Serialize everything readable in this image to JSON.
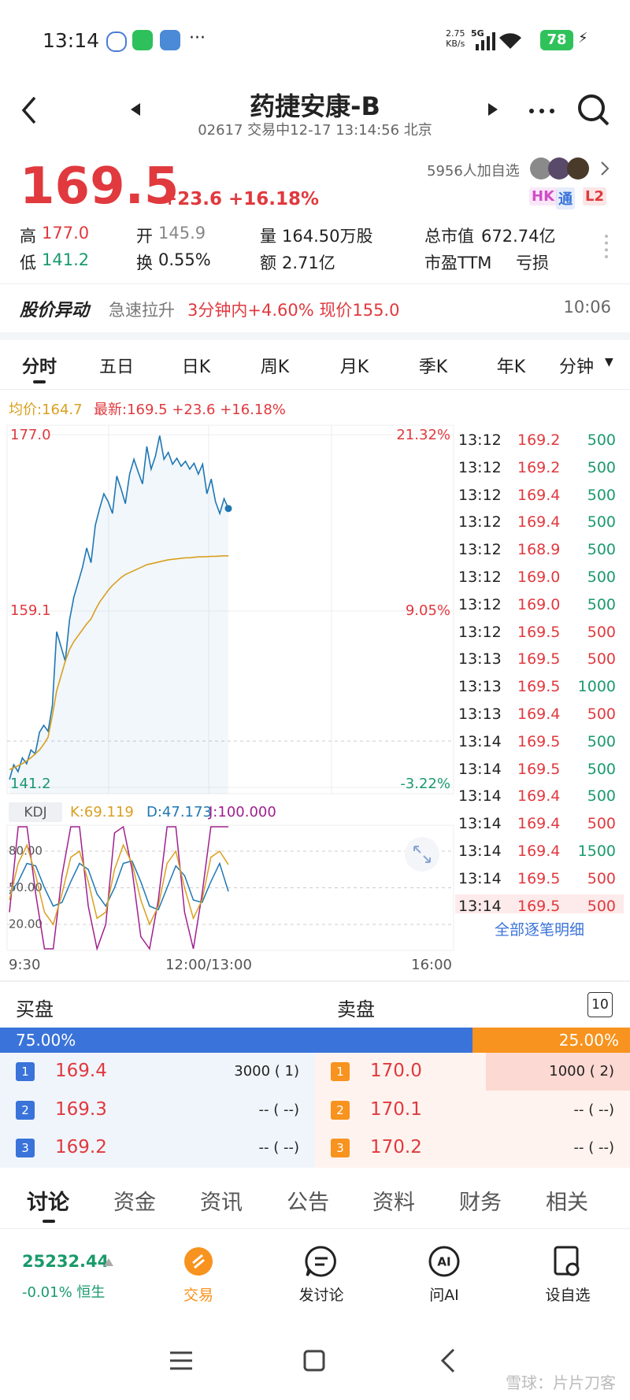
{
  "status": {
    "time": "13:14",
    "speed": "2.75",
    "speed_unit": "KB/s",
    "network": "5G",
    "battery": "78"
  },
  "header": {
    "title": "药捷安康-B",
    "subtitle": "02617 交易中12-17 13:14:56 北京"
  },
  "quote": {
    "price": "169.5",
    "change": "+23.6 +16.18%",
    "followers": "5956人加自选",
    "badges": [
      {
        "text": "HK",
        "color": "#d04cc8"
      },
      {
        "text": "通",
        "color": "#3a73d9"
      },
      {
        "text": "L2",
        "color": "#e0393e"
      }
    ]
  },
  "stats": [
    {
      "label": "高",
      "value": "177.0",
      "color": "#e0393e"
    },
    {
      "label": "开",
      "value": "145.9",
      "color": "#888888"
    },
    {
      "label": "量",
      "value": "164.50万股",
      "color": "#222222"
    },
    {
      "label": "总市值",
      "value": "672.74亿",
      "color": "#222222"
    },
    {
      "label": "低",
      "value": "141.2",
      "color": "#1a9a6c"
    },
    {
      "label": "换",
      "value": "0.55%",
      "color": "#222222"
    },
    {
      "label": "额",
      "value": "2.71亿",
      "color": "#222222"
    },
    {
      "label": "市盈TTM",
      "value": "亏损",
      "color": "#222222"
    }
  ],
  "alert": {
    "label": "股价异动",
    "text": "急速拉升",
    "detail": "3分钟内+4.60% 现价155.0",
    "time": "10:06"
  },
  "tabs": [
    "分时",
    "五日",
    "日K",
    "周K",
    "月K",
    "季K",
    "年K",
    "分钟"
  ],
  "intraday": {
    "avg_label": "均价:164.7",
    "latest_label": "最新:169.5 +23.6 +16.18%",
    "ylim": [
      141.2,
      177.0
    ],
    "yticks": [
      {
        "value": 177.0,
        "label": "177.0"
      },
      159.1,
      141.2
    ],
    "pct_labels": [
      "21.32%",
      "9.05%",
      "-3.22%"
    ],
    "base_line": 145.9,
    "price_color": "#1f77b4",
    "avg_color": "#d9a020",
    "price": [
      142.0,
      143.5,
      142.8,
      144.2,
      143.6,
      145.0,
      144.6,
      146.8,
      147.5,
      146.9,
      149.5,
      157.0,
      155.5,
      154.0,
      158.2,
      160.5,
      162.0,
      163.5,
      165.5,
      164.0,
      167.8,
      169.5,
      171.0,
      170.2,
      169.0,
      172.8,
      171.5,
      170.0,
      173.0,
      174.5,
      173.2,
      172.0,
      175.8,
      173.5,
      174.8,
      176.9,
      174.5,
      175.2,
      174.0,
      174.6,
      173.8,
      174.3,
      173.5,
      174.1,
      173.0,
      174.0,
      171.0,
      172.5,
      170.2,
      169.0,
      170.5,
      169.5
    ],
    "avg": [
      143.0,
      143.2,
      143.4,
      143.6,
      143.9,
      144.2,
      144.6,
      145.0,
      145.6,
      146.3,
      148.5,
      151.0,
      152.5,
      154.0,
      155.2,
      156.0,
      156.6,
      157.2,
      157.8,
      158.3,
      159.2,
      160.0,
      160.6,
      161.2,
      161.7,
      162.1,
      162.5,
      162.8,
      163.0,
      163.2,
      163.4,
      163.6,
      163.8,
      163.9,
      164.0,
      164.1,
      164.2,
      164.3,
      164.35,
      164.4,
      164.45,
      164.5,
      164.5,
      164.55,
      164.6,
      164.6,
      164.62,
      164.65,
      164.65,
      164.68,
      164.7,
      164.7
    ],
    "time_labels": [
      "9:30",
      "12:00/13:00",
      "16:00"
    ]
  },
  "kdj": {
    "label": "KDJ",
    "k_label": "K:69.119",
    "d_label": "D:47.173",
    "j_label": "J:100.000",
    "ylim": [
      0,
      100
    ],
    "yticks": [
      {
        "value": 80,
        "label": "80.00"
      },
      {
        "value": 50,
        "label": "50.00"
      },
      {
        "value": 20,
        "label": "20.00"
      }
    ],
    "k_color": "#d9a020",
    "d_color": "#1f77b4",
    "j_color": "#a0208f",
    "k": [
      40,
      70,
      85,
      60,
      30,
      20,
      45,
      75,
      80,
      55,
      25,
      30,
      65,
      85,
      70,
      40,
      20,
      35,
      70,
      80,
      50,
      25,
      40,
      75,
      80,
      69
    ],
    "d": [
      45,
      55,
      70,
      68,
      50,
      35,
      38,
      55,
      70,
      65,
      45,
      35,
      50,
      70,
      72,
      55,
      35,
      32,
      50,
      68,
      60,
      40,
      38,
      55,
      70,
      47
    ],
    "j": [
      30,
      100,
      100,
      45,
      0,
      0,
      60,
      100,
      100,
      35,
      0,
      20,
      95,
      100,
      65,
      10,
      0,
      40,
      100,
      100,
      30,
      0,
      45,
      100,
      100,
      100
    ]
  },
  "ticks": {
    "rows": [
      {
        "time": "13:12",
        "price": "169.2",
        "volume": "500",
        "color": "#1a9a6c"
      },
      {
        "time": "13:12",
        "price": "169.2",
        "volume": "500",
        "color": "#1a9a6c"
      },
      {
        "time": "13:12",
        "price": "169.4",
        "volume": "500",
        "color": "#1a9a6c"
      },
      {
        "time": "13:12",
        "price": "169.4",
        "volume": "500",
        "color": "#1a9a6c"
      },
      {
        "time": "13:12",
        "price": "168.9",
        "volume": "500",
        "color": "#1a9a6c"
      },
      {
        "time": "13:12",
        "price": "169.0",
        "volume": "500",
        "color": "#1a9a6c"
      },
      {
        "time": "13:12",
        "price": "169.0",
        "volume": "500",
        "color": "#1a9a6c"
      },
      {
        "time": "13:12",
        "price": "169.5",
        "volume": "500",
        "color": "#e0393e"
      },
      {
        "time": "13:13",
        "price": "169.5",
        "volume": "500",
        "color": "#e0393e"
      },
      {
        "time": "13:13",
        "price": "169.5",
        "volume": "1000",
        "color": "#1a9a6c"
      },
      {
        "time": "13:13",
        "price": "169.4",
        "volume": "500",
        "color": "#e0393e"
      },
      {
        "time": "13:14",
        "price": "169.5",
        "volume": "500",
        "color": "#1a9a6c"
      },
      {
        "time": "13:14",
        "price": "169.5",
        "volume": "500",
        "color": "#1a9a6c"
      },
      {
        "time": "13:14",
        "price": "169.4",
        "volume": "500",
        "color": "#1a9a6c"
      },
      {
        "time": "13:14",
        "price": "169.4",
        "volume": "500",
        "color": "#e0393e"
      },
      {
        "time": "13:14",
        "price": "169.4",
        "volume": "1500",
        "color": "#1a9a6c"
      },
      {
        "time": "13:14",
        "price": "169.5",
        "volume": "500",
        "color": "#e0393e"
      },
      {
        "time": "13:14",
        "price": "169.5",
        "volume": "500",
        "color": "#e0393e"
      }
    ],
    "more": "全部逐笔明细"
  },
  "book": {
    "bid_title": "买盘",
    "ask_title": "卖盘",
    "depth": "10",
    "bid_pct": {
      "value": 75,
      "label": "75.00%"
    },
    "ask_pct": {
      "value": 25,
      "label": "25.00%"
    },
    "bids": [
      {
        "level": "1",
        "price": "169.4",
        "qty": "3000 ( 1)"
      },
      {
        "level": "2",
        "price": "169.3",
        "qty": "-- ( --)"
      },
      {
        "level": "3",
        "price": "169.2",
        "qty": "-- ( --)"
      }
    ],
    "asks": [
      {
        "level": "1",
        "price": "170.0",
        "qty": "1000 ( 2)"
      },
      {
        "level": "2",
        "price": "170.1",
        "qty": "-- ( --)"
      },
      {
        "level": "3",
        "price": "170.2",
        "qty": "-- ( --)"
      }
    ]
  },
  "bottom_tabs": [
    "讨论",
    "资金",
    "资讯",
    "公告",
    "资料",
    "财务",
    "相关"
  ],
  "index": {
    "value": "25232.44",
    "change": "-0.01% 恒生"
  },
  "nav": [
    "交易",
    "发讨论",
    "问AI",
    "设自选"
  ],
  "watermark": "雪球：片片刀客"
}
